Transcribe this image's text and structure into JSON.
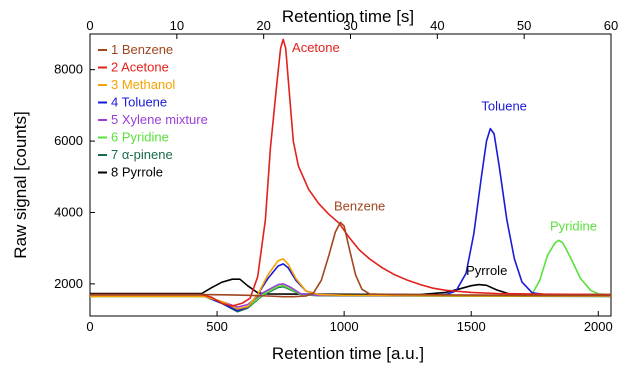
{
  "chart_data": {
    "type": "line",
    "xlabel": "Retention time [a.u.]",
    "ylabel": "Raw signal [counts]",
    "x2label": "Retention time [s]",
    "xlim": [
      0,
      2050
    ],
    "ylim": [
      1100,
      9000
    ],
    "x2lim": [
      0,
      60
    ],
    "xticks": [
      0,
      500,
      1000,
      1500,
      2000
    ],
    "yticks": [
      2000,
      4000,
      6000,
      8000
    ],
    "x2ticks": [
      0,
      10,
      20,
      30,
      40,
      50,
      60
    ],
    "grid": false,
    "legend_position": "top-left",
    "series": [
      {
        "name": "1 Benzene",
        "color": "#a0461e",
        "points": [
          [
            0,
            1700
          ],
          [
            300,
            1700
          ],
          [
            450,
            1700
          ],
          [
            560,
            1690
          ],
          [
            620,
            1680
          ],
          [
            700,
            1660
          ],
          [
            760,
            1640
          ],
          [
            800,
            1640
          ],
          [
            850,
            1660
          ],
          [
            880,
            1750
          ],
          [
            910,
            2100
          ],
          [
            940,
            2800
          ],
          [
            965,
            3450
          ],
          [
            985,
            3720
          ],
          [
            1000,
            3620
          ],
          [
            1020,
            3000
          ],
          [
            1045,
            2250
          ],
          [
            1070,
            1850
          ],
          [
            1100,
            1720
          ],
          [
            1200,
            1700
          ],
          [
            1400,
            1690
          ],
          [
            1700,
            1680
          ],
          [
            2050,
            1680
          ]
        ]
      },
      {
        "name": "2 Acetone",
        "color": "#e3211c",
        "points": [
          [
            0,
            1700
          ],
          [
            300,
            1700
          ],
          [
            440,
            1700
          ],
          [
            480,
            1620
          ],
          [
            520,
            1450
          ],
          [
            560,
            1380
          ],
          [
            600,
            1460
          ],
          [
            630,
            1600
          ],
          [
            660,
            2200
          ],
          [
            690,
            3800
          ],
          [
            710,
            5800
          ],
          [
            735,
            7600
          ],
          [
            750,
            8600
          ],
          [
            760,
            8850
          ],
          [
            770,
            8600
          ],
          [
            785,
            7300
          ],
          [
            800,
            6000
          ],
          [
            820,
            5300
          ],
          [
            860,
            4650
          ],
          [
            900,
            4250
          ],
          [
            940,
            3950
          ],
          [
            980,
            3700
          ],
          [
            1020,
            3300
          ],
          [
            1060,
            2950
          ],
          [
            1100,
            2700
          ],
          [
            1150,
            2450
          ],
          [
            1200,
            2250
          ],
          [
            1250,
            2100
          ],
          [
            1300,
            1980
          ],
          [
            1350,
            1880
          ],
          [
            1400,
            1820
          ],
          [
            1500,
            1760
          ],
          [
            1600,
            1730
          ],
          [
            1800,
            1710
          ],
          [
            2050,
            1700
          ]
        ]
      },
      {
        "name": "3 Methanol",
        "color": "#f5a300",
        "points": [
          [
            0,
            1650
          ],
          [
            300,
            1650
          ],
          [
            450,
            1650
          ],
          [
            520,
            1500
          ],
          [
            580,
            1300
          ],
          [
            620,
            1360
          ],
          [
            660,
            1700
          ],
          [
            700,
            2250
          ],
          [
            740,
            2650
          ],
          [
            760,
            2700
          ],
          [
            780,
            2550
          ],
          [
            810,
            2150
          ],
          [
            850,
            1800
          ],
          [
            900,
            1700
          ],
          [
            1000,
            1680
          ],
          [
            1500,
            1660
          ],
          [
            2050,
            1660
          ]
        ]
      },
      {
        "name": "4 Toluene",
        "color": "#1a1ad9",
        "points": [
          [
            0,
            1660
          ],
          [
            300,
            1660
          ],
          [
            450,
            1660
          ],
          [
            520,
            1450
          ],
          [
            580,
            1250
          ],
          [
            620,
            1350
          ],
          [
            660,
            1700
          ],
          [
            700,
            2150
          ],
          [
            740,
            2500
          ],
          [
            760,
            2560
          ],
          [
            780,
            2450
          ],
          [
            810,
            2100
          ],
          [
            850,
            1800
          ],
          [
            900,
            1700
          ],
          [
            1000,
            1680
          ],
          [
            1300,
            1680
          ],
          [
            1400,
            1700
          ],
          [
            1440,
            1800
          ],
          [
            1480,
            2300
          ],
          [
            1510,
            3400
          ],
          [
            1540,
            5000
          ],
          [
            1560,
            6000
          ],
          [
            1575,
            6350
          ],
          [
            1590,
            6200
          ],
          [
            1610,
            5300
          ],
          [
            1640,
            3800
          ],
          [
            1670,
            2700
          ],
          [
            1700,
            2050
          ],
          [
            1740,
            1750
          ],
          [
            1800,
            1690
          ],
          [
            2050,
            1680
          ]
        ]
      },
      {
        "name": "5 Xylene mixture",
        "color": "#9b3fd6",
        "points": [
          [
            0,
            1660
          ],
          [
            300,
            1660
          ],
          [
            450,
            1660
          ],
          [
            520,
            1500
          ],
          [
            580,
            1350
          ],
          [
            620,
            1420
          ],
          [
            680,
            1750
          ],
          [
            740,
            1980
          ],
          [
            760,
            2000
          ],
          [
            790,
            1900
          ],
          [
            830,
            1720
          ],
          [
            900,
            1680
          ],
          [
            2050,
            1660
          ]
        ]
      },
      {
        "name": "6 Pyridine",
        "color": "#5ae03c",
        "points": [
          [
            0,
            1650
          ],
          [
            300,
            1650
          ],
          [
            450,
            1650
          ],
          [
            520,
            1470
          ],
          [
            580,
            1250
          ],
          [
            620,
            1350
          ],
          [
            680,
            1700
          ],
          [
            740,
            1930
          ],
          [
            760,
            1950
          ],
          [
            790,
            1850
          ],
          [
            830,
            1700
          ],
          [
            900,
            1680
          ],
          [
            1700,
            1680
          ],
          [
            1740,
            1720
          ],
          [
            1770,
            2100
          ],
          [
            1800,
            2800
          ],
          [
            1830,
            3150
          ],
          [
            1845,
            3220
          ],
          [
            1860,
            3150
          ],
          [
            1890,
            2750
          ],
          [
            1930,
            2150
          ],
          [
            1970,
            1820
          ],
          [
            2000,
            1720
          ],
          [
            2050,
            1700
          ]
        ]
      },
      {
        "name": "7 α-pinene",
        "color": "#1a6b4a",
        "points": [
          [
            0,
            1650
          ],
          [
            300,
            1650
          ],
          [
            450,
            1650
          ],
          [
            520,
            1450
          ],
          [
            580,
            1220
          ],
          [
            620,
            1320
          ],
          [
            680,
            1680
          ],
          [
            740,
            1900
          ],
          [
            760,
            1920
          ],
          [
            790,
            1830
          ],
          [
            830,
            1700
          ],
          [
            900,
            1670
          ],
          [
            2050,
            1650
          ]
        ]
      },
      {
        "name": "8 Pyrrole",
        "color": "#000000",
        "points": [
          [
            0,
            1730
          ],
          [
            300,
            1730
          ],
          [
            440,
            1730
          ],
          [
            480,
            1900
          ],
          [
            520,
            2050
          ],
          [
            560,
            2130
          ],
          [
            590,
            2130
          ],
          [
            620,
            1950
          ],
          [
            660,
            1750
          ],
          [
            700,
            1720
          ],
          [
            900,
            1710
          ],
          [
            1300,
            1700
          ],
          [
            1400,
            1760
          ],
          [
            1450,
            1850
          ],
          [
            1500,
            1950
          ],
          [
            1530,
            1980
          ],
          [
            1560,
            1960
          ],
          [
            1600,
            1830
          ],
          [
            1650,
            1720
          ],
          [
            1700,
            1700
          ],
          [
            2050,
            1700
          ]
        ]
      }
    ],
    "annotations": [
      {
        "text": "Acetone",
        "color": "#e3211c",
        "x": 795,
        "y": 8500
      },
      {
        "text": "Benzene",
        "color": "#a0461e",
        "x": 960,
        "y": 4050
      },
      {
        "text": "Toluene",
        "color": "#1a1ad9",
        "x": 1540,
        "y": 6850
      },
      {
        "text": "Pyridine",
        "color": "#5ae03c",
        "x": 1810,
        "y": 3500
      },
      {
        "text": "Pyrrole",
        "color": "#000000",
        "x": 1480,
        "y": 2250
      }
    ]
  }
}
